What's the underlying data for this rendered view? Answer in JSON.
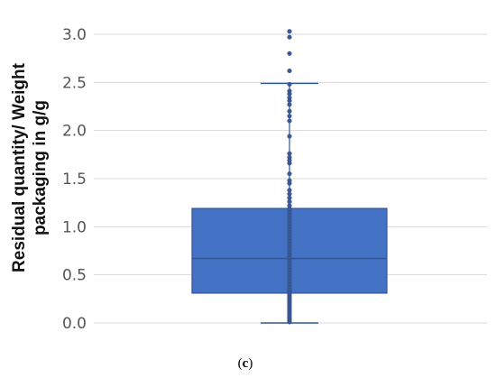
{
  "chart_data": {
    "type": "box",
    "ylabel_lines": [
      "Residual quantity/ Weight",
      "packaging in g/g"
    ],
    "caption": {
      "open": "(",
      "letter": "c",
      "close": ")"
    },
    "ylim": [
      0,
      3.1
    ],
    "yticks": [
      {
        "value": 0.0,
        "label": "0.0"
      },
      {
        "value": 0.5,
        "label": "0.5"
      },
      {
        "value": 1.0,
        "label": "1.0"
      },
      {
        "value": 1.5,
        "label": "1.5"
      },
      {
        "value": 2.0,
        "label": "2.0"
      },
      {
        "value": 2.5,
        "label": "2.5"
      },
      {
        "value": 3.0,
        "label": "3.0"
      }
    ],
    "grid": true,
    "box": {
      "whisker_low": 0.0,
      "q1": 0.31,
      "median": 0.67,
      "q3": 1.19,
      "whisker_high": 2.49
    },
    "points": [
      0.01,
      0.03,
      0.05,
      0.07,
      0.09,
      0.11,
      0.13,
      0.15,
      0.17,
      0.19,
      0.21,
      0.23,
      0.25,
      0.27,
      0.29,
      0.31,
      0.33,
      0.35,
      0.38,
      0.41,
      0.44,
      0.47,
      0.5,
      0.53,
      0.56,
      0.59,
      0.62,
      0.65,
      0.68,
      0.71,
      0.74,
      0.77,
      0.8,
      0.83,
      0.86,
      0.89,
      0.92,
      0.95,
      0.98,
      1.01,
      1.04,
      1.07,
      1.1,
      1.13,
      1.16,
      1.19,
      1.22,
      1.26,
      1.3,
      1.34,
      1.38,
      1.45,
      1.48,
      1.55,
      1.66,
      1.69,
      1.72,
      1.76,
      1.94,
      2.1,
      2.15,
      2.2,
      2.27,
      2.31,
      2.34,
      2.38,
      2.41,
      2.48,
      2.62,
      2.8,
      2.97,
      3.03
    ],
    "colors": {
      "box_fill": "#4472c4",
      "box_edge": "#2f5597",
      "point": "#3a5a9b",
      "grid": "#d9d9d9"
    }
  }
}
